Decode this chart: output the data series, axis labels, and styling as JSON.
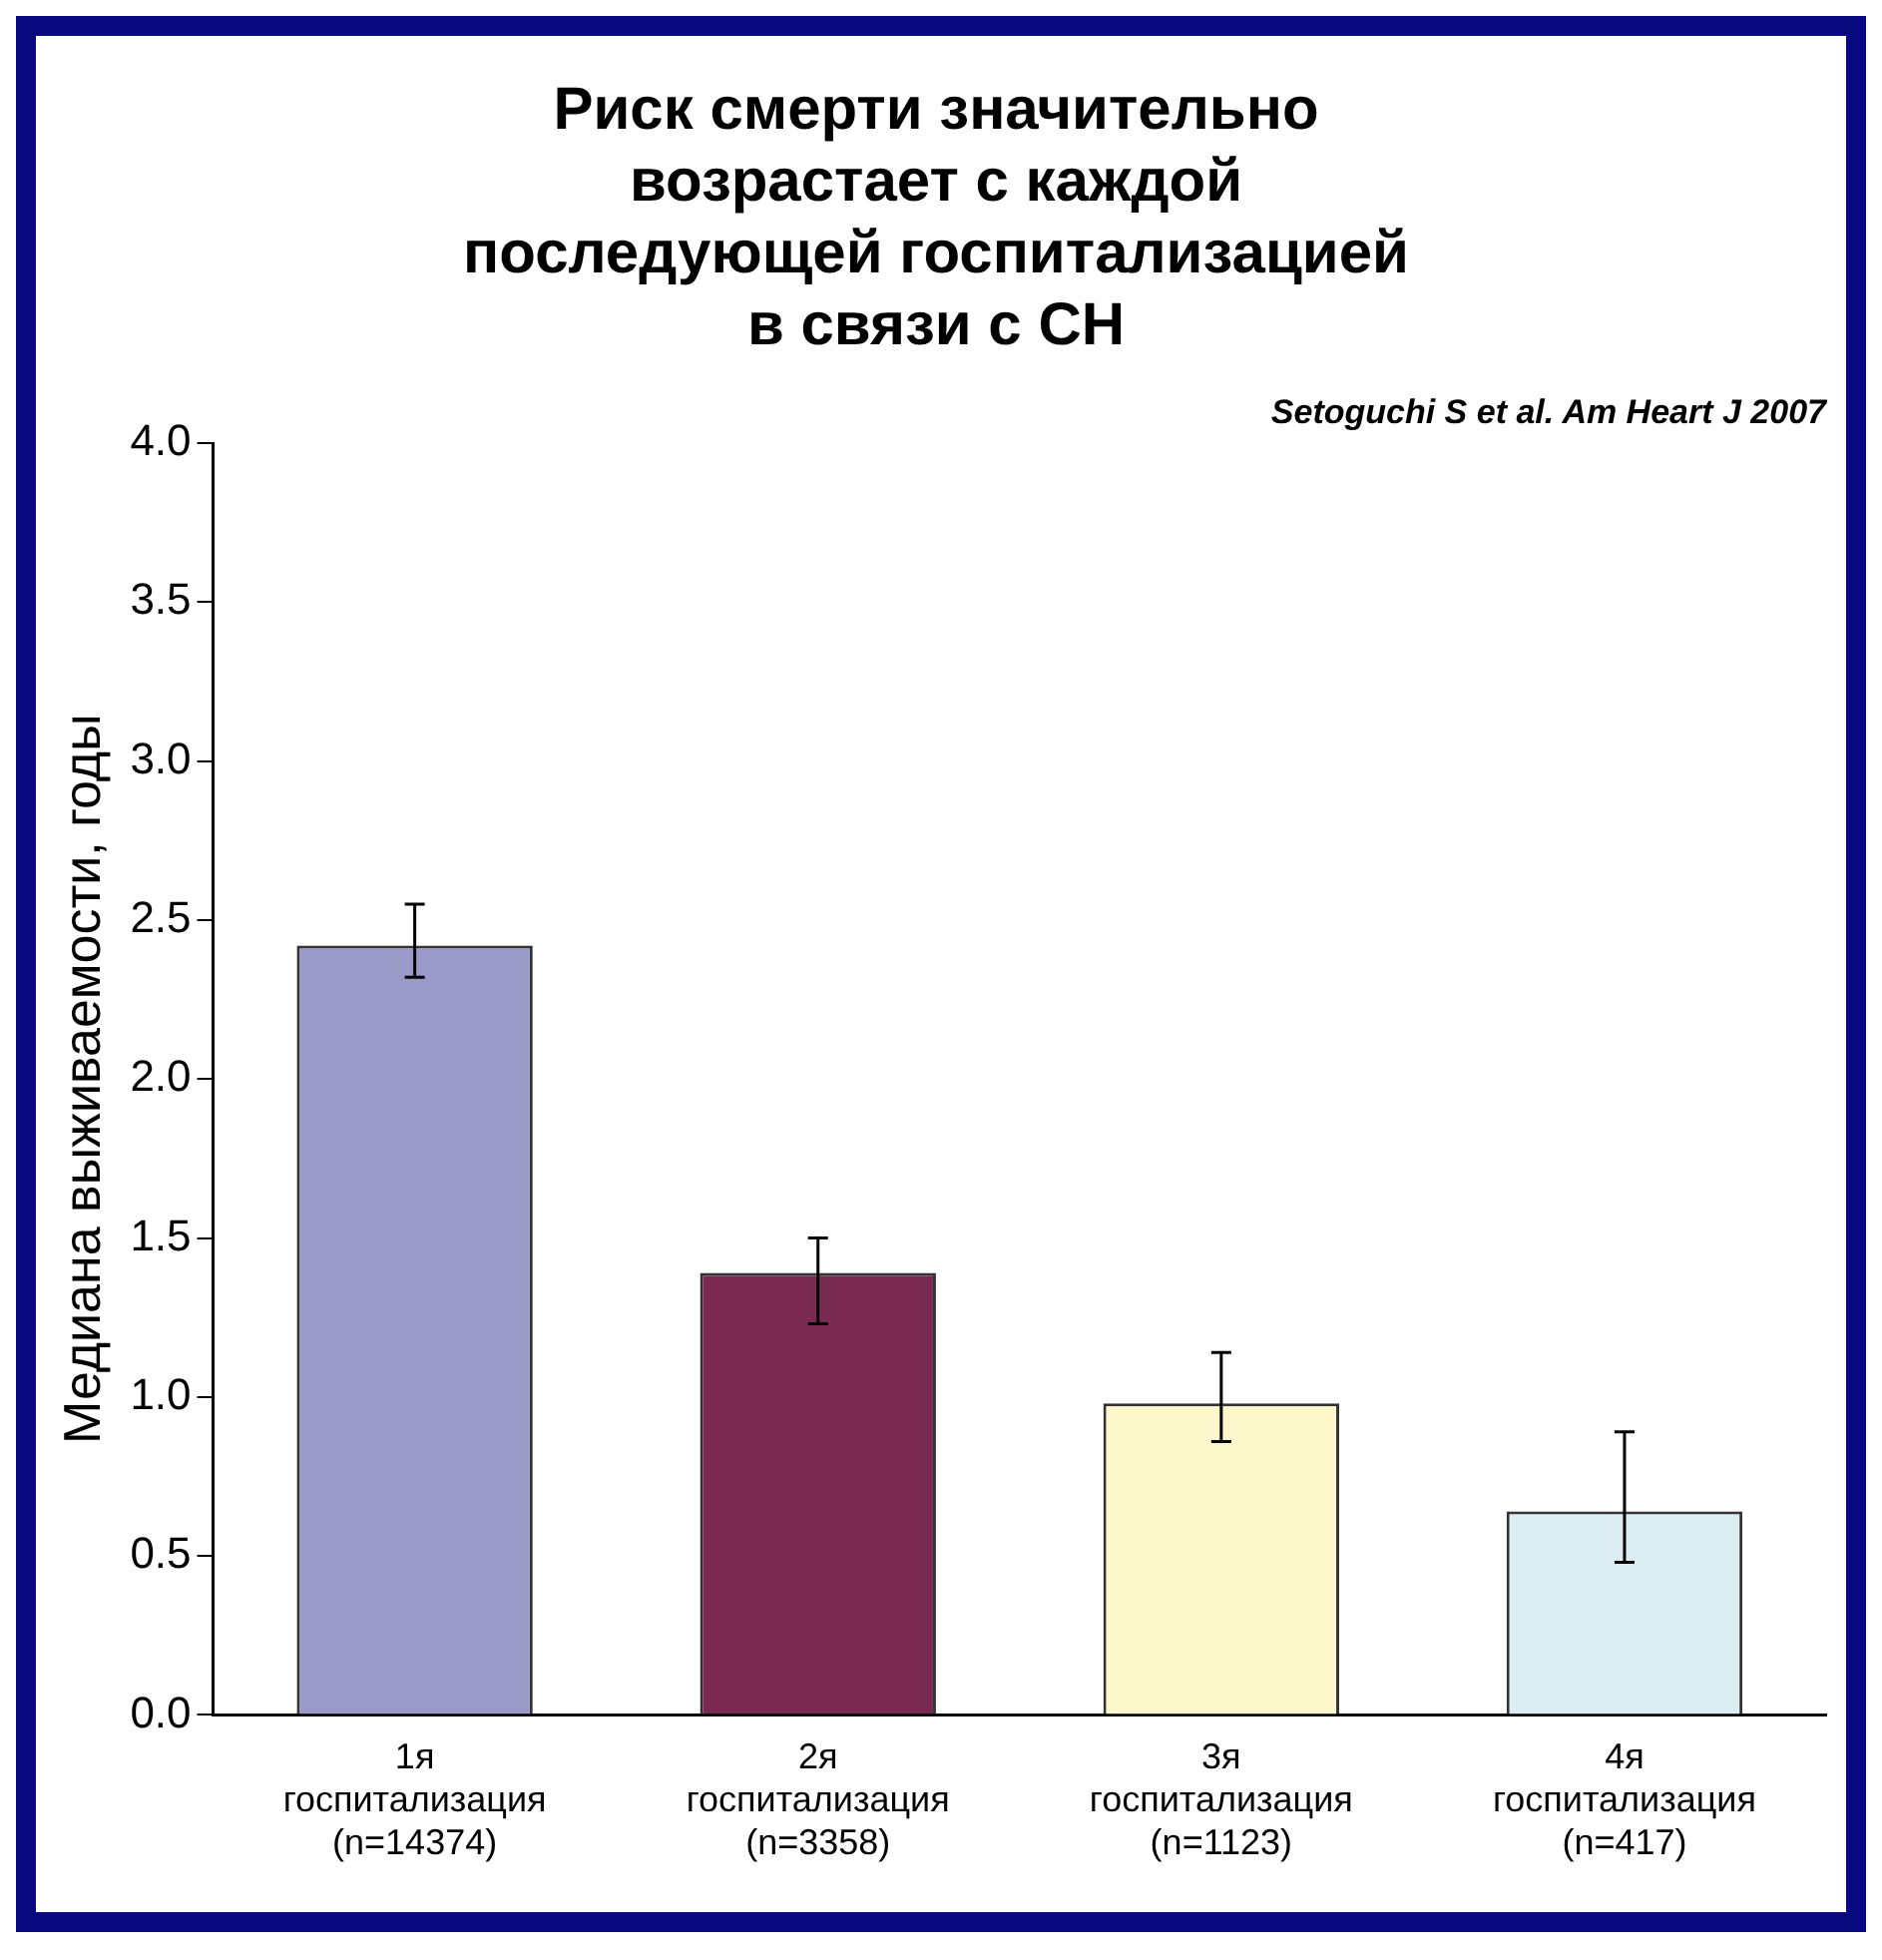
{
  "chart_data": {
    "type": "bar",
    "title": "Риск смерти значительно\nвозрастает с каждой\nпоследующей госпитализацией\nв связи с СН",
    "ylabel": "Медиана выживаемости, годы",
    "annotations": [
      "Setoguchi S et al. Am Heart J 2007"
    ],
    "categories": [
      "1я\nгоспитализация\n(n=14374)",
      "2я\nгоспитализация\n(n=3358)",
      "3я\nгоспитализация\n(n=1123)",
      "4я\nгоспитализация\n(n=417)"
    ],
    "values": [
      2.42,
      1.39,
      0.98,
      0.64
    ],
    "colors": [
      "#9a99c8",
      "#7a2a50",
      "#fcf8cc",
      "#ddeef3"
    ],
    "errors": [
      [
        2.32,
        2.55
      ],
      [
        1.23,
        1.5
      ],
      [
        0.86,
        1.14
      ],
      [
        0.48,
        0.89
      ]
    ],
    "ylim": [
      0,
      4
    ],
    "yticks": [
      {
        "value": 0,
        "label": "0.0"
      },
      {
        "value": 0.5,
        "label": "0.5"
      },
      {
        "value": 1,
        "label": "1.0"
      },
      {
        "value": 1.5,
        "label": "1.5"
      },
      {
        "value": 2,
        "label": "2.0"
      },
      {
        "value": 2.5,
        "label": "2.5"
      },
      {
        "value": 3,
        "label": "3.0"
      },
      {
        "value": 3.5,
        "label": "3.5"
      },
      {
        "value": 4,
        "label": "4.0"
      }
    ],
    "grid": false,
    "legend": false
  }
}
